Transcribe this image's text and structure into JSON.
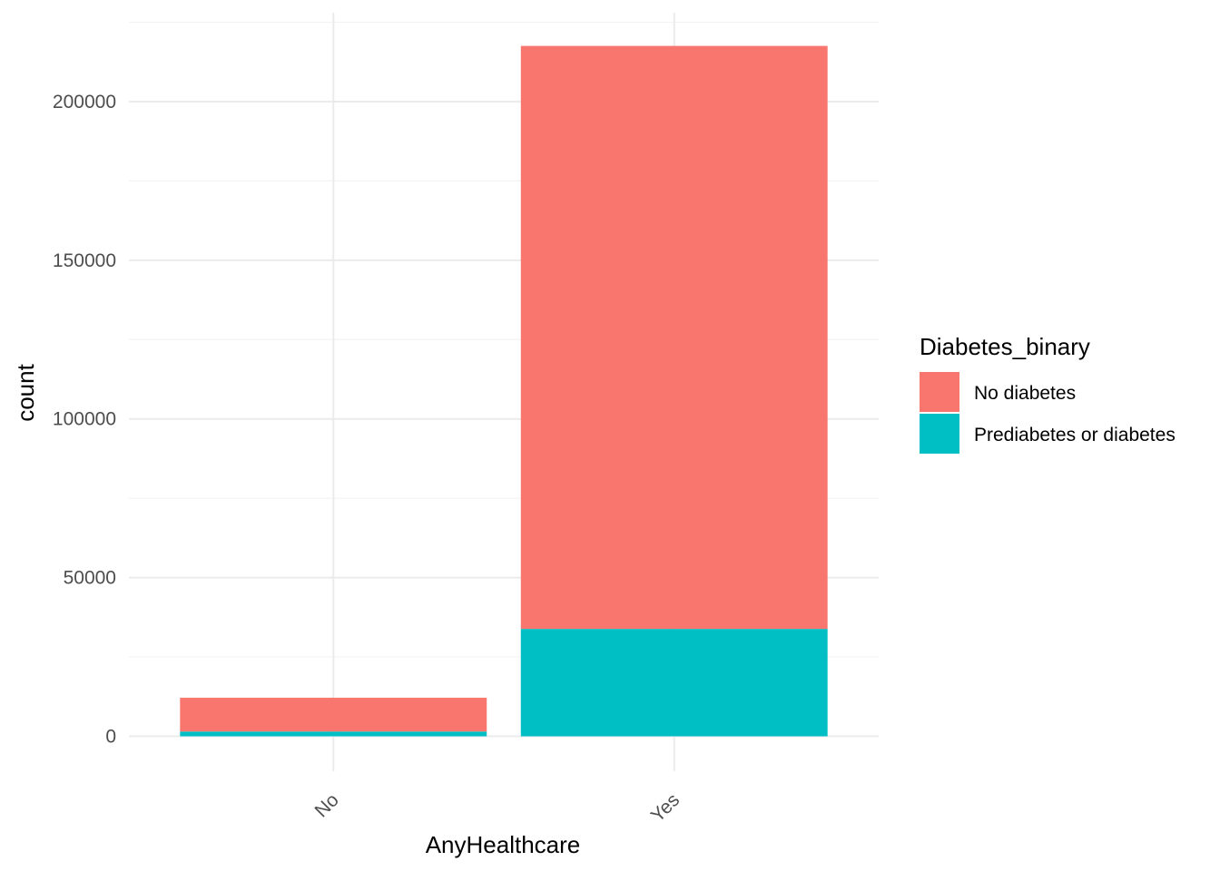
{
  "chart_data": {
    "type": "bar",
    "stacked": true,
    "categories": [
      "No",
      "Yes"
    ],
    "series": [
      {
        "name": "Prediabetes or diabetes",
        "color": "#00BFC4",
        "values": [
          1504,
          33842
        ]
      },
      {
        "name": "No diabetes",
        "color": "#F8766D",
        "values": [
          10637,
          183693
        ]
      }
    ],
    "xlabel": "AnyHealthcare",
    "ylabel": "count",
    "ylim": [
      -11000,
      228000
    ],
    "yticks": [
      0,
      50000,
      100000,
      150000,
      200000
    ],
    "ytick_labels": [
      "0",
      "50000",
      "100000",
      "150000",
      "200000"
    ],
    "grid": true,
    "legend": {
      "title": "Diabetes_binary",
      "position": "right",
      "entries": [
        "No diabetes",
        "Prediabetes or diabetes"
      ]
    }
  }
}
